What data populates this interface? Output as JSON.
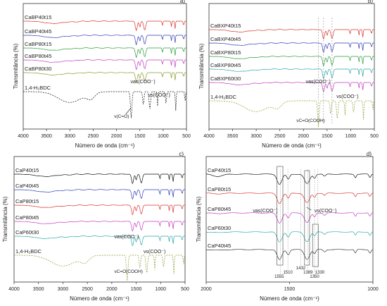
{
  "chart_data": [
    {
      "type": "line",
      "panel": "a)",
      "ylabel": "Transmitância (%)",
      "xlabel": "Número de onda (cm⁻¹)",
      "xlim": [
        4000,
        500
      ],
      "x_ticks": [
        4000,
        3500,
        3000,
        2500,
        2000,
        1500,
        1000,
        500
      ],
      "series": [
        {
          "name": "CaBP40t15",
          "color": "#d9322b"
        },
        {
          "name": "CaBP40t45",
          "color": "#2f3bb5"
        },
        {
          "name": "CaBP80t15",
          "color": "#2a9c3a"
        },
        {
          "name": "CaBP80t45",
          "color": "#c23bc2"
        },
        {
          "name": "CaBP80t30",
          "color": "#8a9a2a"
        },
        {
          "name": "1,4-H₂BDC",
          "color": "#111111"
        }
      ],
      "annotations": [
        "νas(COO⁻)",
        "νs(COO⁻)",
        "ν(C=O)"
      ]
    },
    {
      "type": "line",
      "panel": "b)",
      "ylabel": "Transmitância (%)",
      "xlabel": "Número de onda (cm⁻¹)",
      "xlim": [
        4000,
        500
      ],
      "x_ticks": [
        4000,
        3500,
        3000,
        2500,
        2000,
        1500,
        1000,
        500
      ],
      "series": [
        {
          "name": "CaBXP40t15",
          "color": "#d9322b"
        },
        {
          "name": "CaBXP40t45",
          "color": "#2f3bb5"
        },
        {
          "name": "CaBXP80t15",
          "color": "#2a9c3a"
        },
        {
          "name": "CaBXP80t45",
          "color": "#2aa7a7"
        },
        {
          "name": "CaBXP60t30",
          "color": "#c23bc2"
        },
        {
          "name": "1,4-H₂BDC",
          "color": "#8a9a2a"
        }
      ],
      "annotations": [
        "νas(COO⁻)",
        "νs(COO⁻)",
        "νC=O(COOH)"
      ]
    },
    {
      "type": "line",
      "panel": "c)",
      "ylabel": "Transmitância (%)",
      "xlabel": "Número de onda (cm⁻¹)",
      "xlim": [
        4000,
        500
      ],
      "x_ticks": [
        4000,
        3500,
        3000,
        2500,
        2000,
        1500,
        1000,
        500
      ],
      "series": [
        {
          "name": "CaP40t15",
          "color": "#111111"
        },
        {
          "name": "CaP40t45",
          "color": "#2f3bb5"
        },
        {
          "name": "CaP80t15",
          "color": "#d9322b"
        },
        {
          "name": "CaP80t45",
          "color": "#c23bc2"
        },
        {
          "name": "CaP60t30",
          "color": "#2aa7a7"
        },
        {
          "name": "1,4-H₂BDC",
          "color": "#8a9a2a"
        }
      ],
      "annotations": [
        "νas(COO⁻)",
        "νs(COO⁻)",
        "νC=O(COOH)"
      ]
    },
    {
      "type": "line",
      "panel": "d)",
      "ylabel": "Transmitância (%)",
      "xlabel": "Número de onda (cm⁻¹)",
      "xlim": [
        2000,
        1000
      ],
      "x_ticks": [
        2000,
        1500,
        1000
      ],
      "series": [
        {
          "name": "CaP40t15",
          "color": "#111111"
        },
        {
          "name": "CaP80t15",
          "color": "#d9322b"
        },
        {
          "name": "CaP80t45",
          "color": "#c23bc2"
        },
        {
          "name": "CaP60t30",
          "color": "#2aa7a7"
        },
        {
          "name": "CaP40t45",
          "color": "#333333"
        }
      ],
      "annotations": [
        "νas(COO⁻)",
        "νs(COO⁻)"
      ],
      "peak_labels": [
        "1555",
        "1510",
        "1432",
        "1389",
        "1350",
        "1330"
      ]
    }
  ]
}
